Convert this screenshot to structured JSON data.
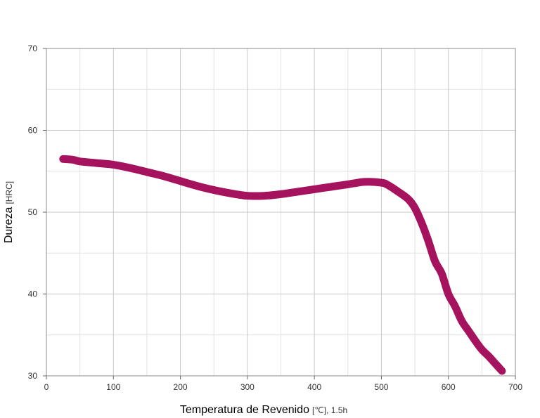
{
  "chart_data": {
    "type": "line",
    "title": "",
    "xlabel": "Temperatura de Revenido",
    "xlabel_unit": "[℃], 1.5h",
    "ylabel": "Dureza",
    "ylabel_unit": "[HRC]",
    "xlim": [
      0,
      700
    ],
    "ylim": [
      30,
      70
    ],
    "x_major_ticks": [
      0,
      100,
      200,
      300,
      400,
      500,
      600,
      700
    ],
    "y_major_ticks": [
      30,
      40,
      50,
      60,
      70
    ],
    "x_tick_labels": [
      "0",
      "100",
      "200",
      "300",
      "400",
      "500",
      "600",
      "700"
    ],
    "y_tick_labels": [
      "30",
      "40",
      "50",
      "60",
      "70"
    ],
    "grid": true,
    "legend": "none",
    "series": [
      {
        "color": "#a5135e",
        "x": [
          25,
          40,
          50,
          75,
          100,
          125,
          150,
          175,
          200,
          225,
          250,
          275,
          300,
          325,
          350,
          375,
          400,
          425,
          450,
          475,
          500,
          510,
          525,
          540,
          550,
          560,
          570,
          580,
          590,
          600,
          610,
          620,
          630,
          640,
          650,
          660,
          670,
          680
        ],
        "y": [
          56.5,
          56.4,
          56.2,
          56.0,
          55.8,
          55.4,
          54.9,
          54.4,
          53.8,
          53.2,
          52.7,
          52.3,
          52.0,
          52.0,
          52.2,
          52.5,
          52.8,
          53.1,
          53.4,
          53.7,
          53.6,
          53.3,
          52.5,
          51.6,
          50.5,
          48.7,
          46.5,
          44.0,
          42.5,
          40.0,
          38.5,
          36.7,
          35.5,
          34.3,
          33.2,
          32.4,
          31.5,
          30.6
        ]
      }
    ]
  }
}
